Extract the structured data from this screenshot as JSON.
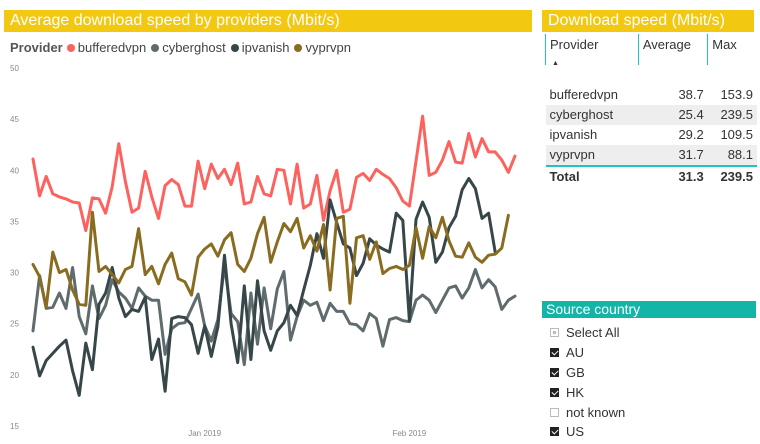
{
  "chart": {
    "title": "Average download speed by providers (Mbit/s)",
    "legend_title": "Provider"
  },
  "chart_data": {
    "type": "line",
    "title": "Average download speed by providers (Mbit/s)",
    "xlabel": "",
    "ylabel": "",
    "ylim": [
      15,
      50
    ],
    "yticks": [
      15,
      20,
      25,
      30,
      35,
      40,
      45,
      50
    ],
    "xticks": [
      {
        "label": "Jan 2019",
        "index": 26
      },
      {
        "label": "Feb 2019",
        "index": 57
      }
    ],
    "legend_position": "top-left",
    "grid": false,
    "series": [
      {
        "name": "bufferedvpn",
        "color": "#fd625e",
        "values": [
          41.1,
          37.5,
          39.4,
          37.7,
          37.4,
          37.2,
          36.9,
          36.8,
          34.1,
          37.3,
          37.2,
          35.8,
          38.4,
          42.6,
          38.9,
          35.9,
          36.3,
          39.9,
          37.4,
          35.3,
          38.5,
          39.1,
          38.6,
          36.5,
          36.5,
          40.9,
          38.2,
          40.6,
          39.2,
          40.1,
          38.6,
          40.7,
          36.7,
          36.9,
          39.4,
          37.7,
          37.5,
          40.1,
          40.0,
          36.7,
          40.6,
          36.3,
          36.7,
          39.5,
          35.1,
          38.0,
          40.0,
          35.9,
          36.2,
          39.3,
          39.7,
          39.0,
          40.1,
          39.6,
          39.2,
          38.3,
          37.0,
          36.5,
          40.9,
          45.3,
          39.5,
          39.8,
          41.0,
          42.8,
          40.8,
          40.7,
          43.6,
          41.3,
          43.1,
          41.8,
          41.8,
          41.0,
          39.8,
          41.4
        ]
      },
      {
        "name": "cyberghost",
        "color": "#5f6b6d",
        "values": [
          24.3,
          29.7,
          26.5,
          26.6,
          28.0,
          26.5,
          30.5,
          25.7,
          24.0,
          28.7,
          25.5,
          26.8,
          29.3,
          28.1,
          27.5,
          26.5,
          28.5,
          27.7,
          27.3,
          27.3,
          22.0,
          24.5,
          25.0,
          25.1,
          26.5,
          27.9,
          24.8,
          23.3,
          25.4,
          30.7,
          26.0,
          25.2,
          21.0,
          28.0,
          23.0,
          28.5,
          24.5,
          28.4,
          30.1,
          23.4,
          25.7,
          27.3,
          26.8,
          27.1,
          25.3,
          27.0,
          26.2,
          26.2,
          25.0,
          24.9,
          24.3,
          26.0,
          25.5,
          22.8,
          25.4,
          25.6,
          25.3,
          25.2,
          27.3,
          27.8,
          27.3,
          26.1,
          27.3,
          28.5,
          28.7,
          27.5,
          28.5,
          30.3,
          28.5,
          29.3,
          28.6,
          26.4,
          27.3,
          27.7
        ]
      },
      {
        "name": "ipvanish",
        "color": "#374649",
        "values": [
          22.7,
          19.9,
          21.4,
          22.1,
          22.8,
          23.4,
          20.4,
          18.0,
          23.1,
          20.5,
          26.9,
          28.0,
          30.5,
          27.5,
          25.7,
          26.4,
          26.2,
          27.6,
          21.5,
          23.5,
          18.4,
          25.5,
          25.7,
          25.6,
          24.9,
          22.1,
          24.8,
          21.8,
          24.7,
          31.7,
          25.0,
          21.2,
          28.7,
          21.5,
          29.2,
          24.3,
          22.4,
          24.3,
          25.1,
          26.8,
          25.8,
          28.3,
          30.7,
          33.8,
          31.4,
          37.1,
          34.9,
          32.8,
          32.4,
          29.7,
          30.9,
          33.3,
          32.7,
          32.3,
          32.0,
          35.8,
          35.1,
          25.3,
          35.2,
          36.9,
          35.4,
          31.0,
          32.0,
          34.4,
          35.5,
          38.1,
          39.2,
          38.2,
          35.3,
          35.8,
          32.0
        ]
      },
      {
        "name": "vyprvpn",
        "color": "#8a6c21",
        "values": [
          30.8,
          29.6,
          26.6,
          32.0,
          30.0,
          30.3,
          28.3,
          26.9,
          26.8,
          35.9,
          30.1,
          30.6,
          29.8,
          29.0,
          30.3,
          30.6,
          34.3,
          29.8,
          30.6,
          28.9,
          30.8,
          31.9,
          29.4,
          29.1,
          27.8,
          31.5,
          32.3,
          32.8,
          31.6,
          33.2,
          33.9,
          30.8,
          30.1,
          31.4,
          33.8,
          35.4,
          31.0,
          33.0,
          34.8,
          34.0,
          35.3,
          32.4,
          33.6,
          32.1,
          34.7,
          28.3,
          35.3,
          35.5,
          27.0,
          33.4,
          33.6,
          31.3,
          33.0,
          29.9,
          30.4,
          30.6,
          30.3,
          30.7,
          34.4,
          31.4,
          34.5,
          33.4,
          35.4,
          33.1,
          31.6,
          31.5,
          32.9,
          31.5,
          31.0,
          31.7,
          31.8,
          32.4,
          35.6
        ]
      }
    ]
  },
  "table": {
    "title": "Download speed (Mbit/s)",
    "headers": {
      "provider": "Provider",
      "average": "Average",
      "max": "Max"
    },
    "sort_icon": "sort-ascending-icon",
    "rows": [
      {
        "provider": "bufferedvpn",
        "average": "38.7",
        "max": "153.9"
      },
      {
        "provider": "cyberghost",
        "average": "25.4",
        "max": "239.5"
      },
      {
        "provider": "ipvanish",
        "average": "29.2",
        "max": "109.5"
      },
      {
        "provider": "vyprvpn",
        "average": "31.7",
        "max": "88.1"
      }
    ],
    "total": {
      "label": "Total",
      "average": "31.3",
      "max": "239.5"
    }
  },
  "slicer": {
    "title": "Source country",
    "items": [
      {
        "label": "Select All",
        "state": "partial"
      },
      {
        "label": "AU",
        "state": "checked"
      },
      {
        "label": "GB",
        "state": "checked"
      },
      {
        "label": "HK",
        "state": "checked"
      },
      {
        "label": "not known",
        "state": "unchecked"
      },
      {
        "label": "US",
        "state": "checked"
      }
    ]
  }
}
